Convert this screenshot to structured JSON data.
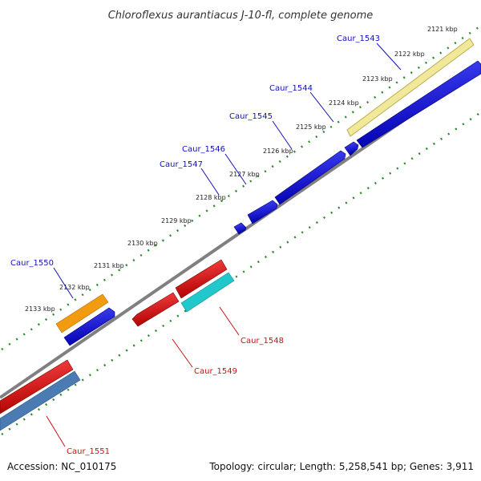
{
  "title": "Chloroflexus aurantiacus J-10-fl, complete genome",
  "footer": {
    "accession": "Accession: NC_010175",
    "summary": "Topology: circular; Length: 5,258,541 bp; Genes: 3,911"
  },
  "kbp_ticks": [
    "2121 kbp",
    "2122 kbp",
    "2123 kbp",
    "2124 kbp",
    "2125 kbp",
    "2126 kbp",
    "2127 kbp",
    "2128 kbp",
    "2129 kbp",
    "2130 kbp",
    "2131 kbp",
    "2132 kbp",
    "2133 kbp"
  ],
  "genes_forward": [
    {
      "name": "Caur_1543"
    },
    {
      "name": "Caur_1544"
    },
    {
      "name": "Caur_1545"
    },
    {
      "name": "Caur_1546"
    },
    {
      "name": "Caur_1547"
    },
    {
      "name": "Caur_1550"
    }
  ],
  "genes_reverse": [
    {
      "name": "Caur_1548"
    },
    {
      "name": "Caur_1549"
    },
    {
      "name": "Caur_1551"
    }
  ],
  "colors": {
    "backbone": "#808080",
    "forward_cds": "#0000ee",
    "reverse_cds": "#ee0000",
    "tick_dots": "#2a8a2a",
    "label_forward": "#1010c0",
    "label_reverse": "#cc1010",
    "feature_yellow": "#f1e89a",
    "feature_orange": "#f29a10",
    "feature_cyan": "#20c8cc",
    "feature_steelblue": "#4a7bb2"
  }
}
